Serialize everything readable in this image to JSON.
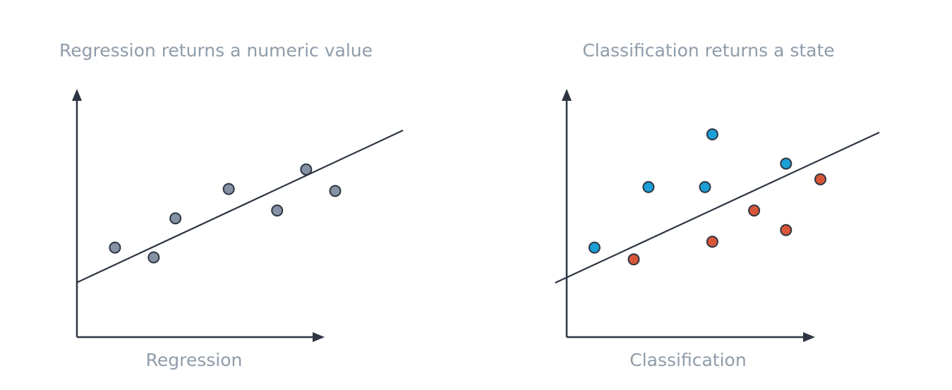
{
  "colors": {
    "ink": "#2e3542",
    "text": "#8f9caa",
    "regression_point": "#8592a5",
    "class_a": "#1a9fd6",
    "class_b": "#e35b3b"
  },
  "chart_data": [
    {
      "type": "scatter",
      "title": "Regression returns a numeric value",
      "xlabel": "Regression",
      "ylabel": "",
      "xlim": [
        0,
        10
      ],
      "ylim": [
        0,
        10
      ],
      "trendline": [
        [
          -0.7,
          1.3
        ],
        [
          12.8,
          9.1
        ]
      ],
      "series": [
        {
          "points": [
            [
              0.9,
              3.1
            ],
            [
              2.5,
              2.6
            ],
            [
              3.4,
              4.6
            ],
            [
              5.6,
              6.1
            ],
            [
              7.6,
              5.0
            ],
            [
              8.8,
              7.1
            ],
            [
              10.0,
              6.0
            ]
          ]
        }
      ]
    },
    {
      "type": "scatter",
      "title": "Classification returns a state",
      "xlabel": "Classification",
      "ylabel": "",
      "xlim": [
        0,
        10
      ],
      "ylim": [
        0,
        10
      ],
      "trendline": [
        [
          -0.9,
          1.3
        ],
        [
          12.3,
          9.0
        ]
      ],
      "series": [
        {
          "class": "a",
          "points": [
            [
              0.7,
              3.1
            ],
            [
              2.9,
              6.2
            ],
            [
              5.2,
              6.2
            ],
            [
              5.5,
              8.9
            ],
            [
              8.5,
              7.4
            ]
          ]
        },
        {
          "class": "b",
          "points": [
            [
              2.3,
              2.5
            ],
            [
              5.5,
              3.4
            ],
            [
              7.2,
              5.0
            ],
            [
              8.5,
              4.0
            ],
            [
              9.9,
              6.6
            ]
          ]
        }
      ]
    }
  ]
}
